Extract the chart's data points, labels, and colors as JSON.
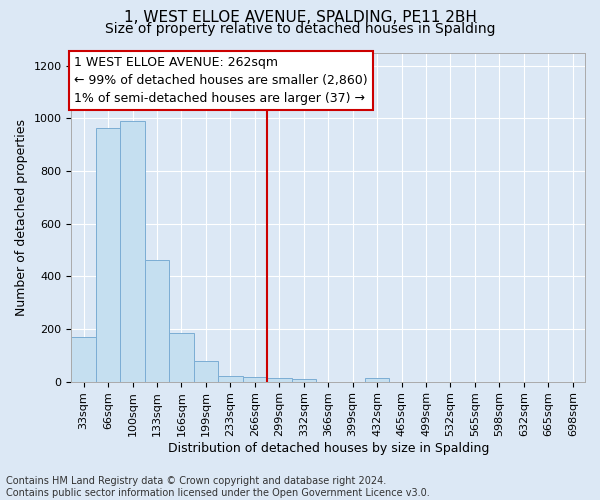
{
  "title": "1, WEST ELLOE AVENUE, SPALDING, PE11 2BH",
  "subtitle": "Size of property relative to detached houses in Spalding",
  "xlabel": "Distribution of detached houses by size in Spalding",
  "ylabel": "Number of detached properties",
  "footnote": "Contains HM Land Registry data © Crown copyright and database right 2024.\nContains public sector information licensed under the Open Government Licence v3.0.",
  "categories": [
    "33sqm",
    "66sqm",
    "100sqm",
    "133sqm",
    "166sqm",
    "199sqm",
    "233sqm",
    "266sqm",
    "299sqm",
    "332sqm",
    "366sqm",
    "399sqm",
    "432sqm",
    "465sqm",
    "499sqm",
    "532sqm",
    "565sqm",
    "598sqm",
    "632sqm",
    "665sqm",
    "698sqm"
  ],
  "values": [
    170,
    965,
    990,
    460,
    185,
    80,
    22,
    18,
    12,
    8,
    0,
    0,
    15,
    0,
    0,
    0,
    0,
    0,
    0,
    0,
    0
  ],
  "bar_color": "#c5dff0",
  "bar_edge_color": "#7badd4",
  "vline_index": 7.5,
  "annotation_box_text": "1 WEST ELLOE AVENUE: 262sqm\n← 99% of detached houses are smaller (2,860)\n1% of semi-detached houses are larger (37) →",
  "annotation_box_color": "#ffffff",
  "annotation_box_edge_color": "#cc0000",
  "vline_color": "#cc0000",
  "ylim": [
    0,
    1250
  ],
  "yticks": [
    0,
    200,
    400,
    600,
    800,
    1000,
    1200
  ],
  "bg_color": "#dce8f5",
  "grid_color": "#ffffff",
  "title_fontsize": 11,
  "subtitle_fontsize": 10,
  "label_fontsize": 9,
  "tick_fontsize": 8,
  "annotation_fontsize": 9,
  "footnote_fontsize": 7
}
